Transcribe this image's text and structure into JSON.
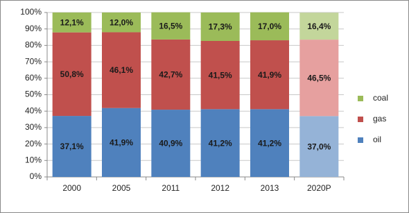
{
  "chart_data": {
    "type": "stacked_bar",
    "categories": [
      "2000",
      "2005",
      "2011",
      "2012",
      "2013",
      "2020P"
    ],
    "series": [
      {
        "name": "oil",
        "color": "#4f81bd",
        "colors": [
          "#4f81bd",
          "#4f81bd",
          "#4f81bd",
          "#4f81bd",
          "#4f81bd",
          "#95b3d7"
        ],
        "values": [
          37.1,
          41.9,
          40.9,
          41.2,
          41.2,
          37.0
        ],
        "value_labels": [
          "37,1%",
          "41,9%",
          "40,9%",
          "41,2%",
          "41,2%",
          "37,0%"
        ]
      },
      {
        "name": "gas",
        "color": "#c0504d",
        "colors": [
          "#c0504d",
          "#c0504d",
          "#c0504d",
          "#c0504d",
          "#c0504d",
          "#e6a09f"
        ],
        "values": [
          50.8,
          46.1,
          42.7,
          41.5,
          41.9,
          46.5
        ],
        "value_labels": [
          "50,8%",
          "46,1%",
          "42,7%",
          "41,5%",
          "41,9%",
          "46,5%"
        ]
      },
      {
        "name": "coal",
        "color": "#9bbb59",
        "colors": [
          "#9bbb59",
          "#9bbb59",
          "#9bbb59",
          "#9bbb59",
          "#9bbb59",
          "#c3d69b"
        ],
        "values": [
          12.1,
          12.0,
          16.5,
          17.3,
          17.0,
          16.4
        ],
        "value_labels": [
          "12,1%",
          "12,0%",
          "16,5%",
          "17,3%",
          "17,0%",
          "16,4%"
        ]
      }
    ],
    "ylim": [
      0,
      100
    ],
    "yticks": [
      {
        "value": 0,
        "label": "0%"
      },
      {
        "value": 10,
        "label": "10%"
      },
      {
        "value": 20,
        "label": "20%"
      },
      {
        "value": 30,
        "label": "30%"
      },
      {
        "value": 40,
        "label": "40%"
      },
      {
        "value": 50,
        "label": "50%"
      },
      {
        "value": 60,
        "label": "60%"
      },
      {
        "value": 70,
        "label": "70%"
      },
      {
        "value": 80,
        "label": "80%"
      },
      {
        "value": 90,
        "label": "90%"
      },
      {
        "value": 100,
        "label": "100%"
      }
    ],
    "grid": true,
    "legend": "right"
  }
}
